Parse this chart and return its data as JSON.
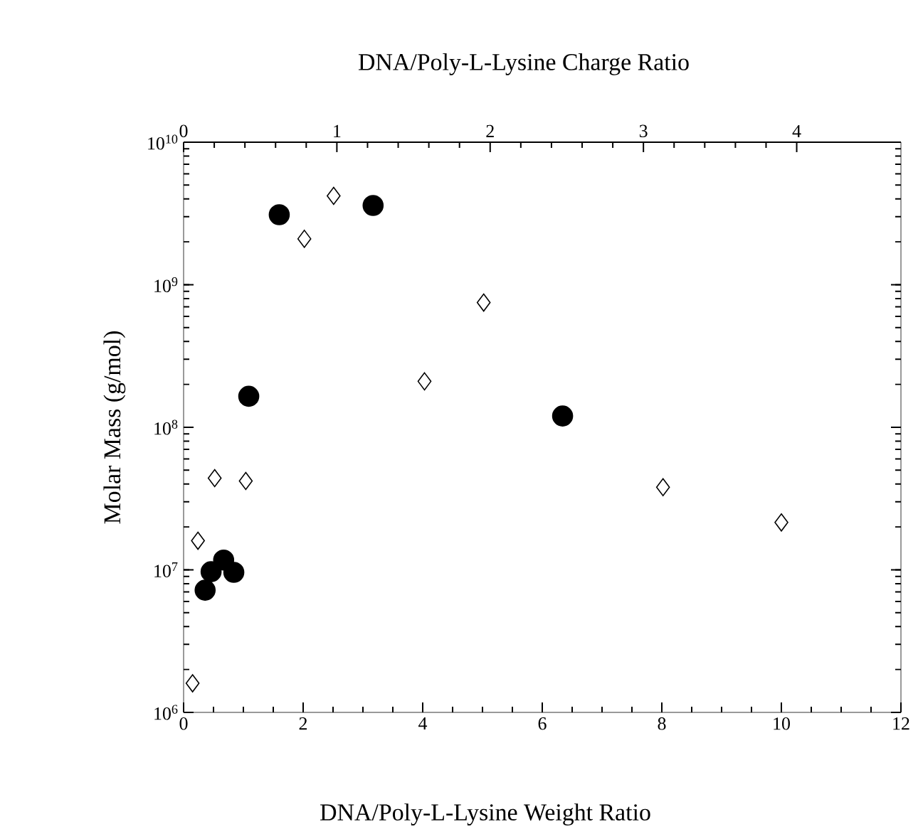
{
  "chart_data": {
    "type": "scatter",
    "xlabel": "DNA/Poly-L-Lysine Weight Ratio",
    "x2label": "DNA/Poly-L-Lysine Charge Ratio",
    "ylabel": "Molar Mass (g/mol)",
    "log": "y",
    "xlim": [
      0,
      12
    ],
    "xticks": [
      0,
      2,
      4,
      6,
      8,
      10,
      12
    ],
    "x2lim": [
      0,
      4.68
    ],
    "x2ticks": [
      0,
      1,
      2,
      3,
      4
    ],
    "ylim": [
      1000000,
      10000000000
    ],
    "yticks": [
      {
        "value": 1000000,
        "label": "10$^{6}$"
      },
      {
        "value": 10000000,
        "label": "10$^{7}$"
      },
      {
        "value": 100000000,
        "label": "10$^{8}$"
      },
      {
        "value": 1000000000,
        "label": "10$^{9}$"
      },
      {
        "value": 10000000000,
        "label": "10$^{10}$"
      }
    ],
    "series": [
      {
        "color": "#000000",
        "marker": "circle",
        "x": [
          1.6,
          3.17,
          1.09,
          6.34,
          0.46,
          0.67,
          0.84,
          0.36
        ],
        "values": [
          3100000000,
          3600000000,
          165000000,
          120000000,
          9700000,
          11700000,
          9600000,
          7200000
        ]
      },
      {
        "color": "#000000",
        "marker": "diamond",
        "x": [
          2.51,
          2.02,
          5.02,
          4.03,
          0.52,
          1.04,
          0.24,
          0.15,
          8.02,
          10.0
        ],
        "values": [
          4200000000,
          2100000000,
          750000000,
          210000000,
          44000000,
          42000000,
          16000000,
          1600000,
          38000000,
          21500000
        ]
      }
    ]
  }
}
